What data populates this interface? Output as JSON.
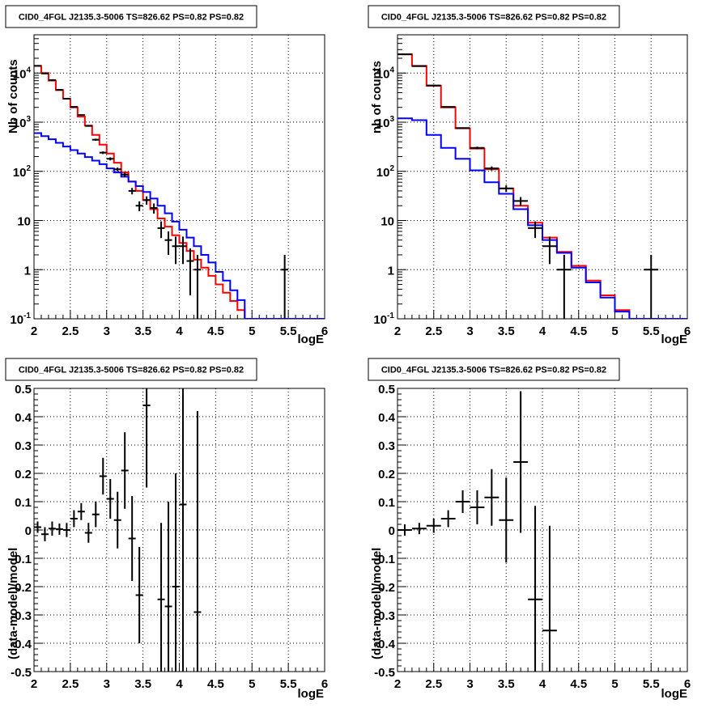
{
  "panel_title": "CID0_4FGL J2135.3-5006 TS=826.62 PS=0.82 PS=0.82",
  "colors": {
    "data": "#000000",
    "total_model": "#ff0000",
    "source_model": "#0000ff",
    "grid": "#000000"
  },
  "chart_data": [
    {
      "type": "line",
      "panel": "top-left",
      "title": "CID0_4FGL J2135.3-5006 TS=826.62 PS=0.82 PS=0.82",
      "xlabel": "logE",
      "ylabel": "Nb of counts",
      "xlim": [
        2,
        6
      ],
      "ylim": [
        0.1,
        60000
      ],
      "yscale": "log",
      "grid": true,
      "x_ticks": [
        "2",
        "2.5",
        "3",
        "3.5",
        "4",
        "4.5",
        "5",
        "5.5",
        "6"
      ],
      "y_ticks": [
        {
          "base": "10",
          "exp": "-1"
        },
        {
          "base": "1",
          "exp": ""
        },
        {
          "base": "10",
          "exp": ""
        },
        {
          "base": "10",
          "exp": "2"
        },
        {
          "base": "10",
          "exp": "3"
        },
        {
          "base": "10",
          "exp": "4"
        }
      ],
      "bin_edges": [
        2.0,
        2.1,
        2.2,
        2.3,
        2.4,
        2.5,
        2.6,
        2.7,
        2.8,
        2.9,
        3.0,
        3.1,
        3.2,
        3.3,
        3.4,
        3.5,
        3.6,
        3.7,
        3.8,
        3.9,
        4.0,
        4.1,
        4.2,
        4.3,
        4.4,
        4.5,
        4.6,
        4.7,
        4.8,
        4.9,
        5.0,
        5.1,
        5.2,
        5.3,
        5.4,
        5.5,
        5.6,
        5.7,
        5.8,
        5.9,
        6.0
      ],
      "series": [
        {
          "role": "total_model",
          "color": "#ff0000",
          "values": [
            14000,
            10000,
            7000,
            4500,
            3000,
            2000,
            1300,
            850,
            550,
            350,
            230,
            150,
            95,
            62,
            40,
            26,
            17,
            11,
            7.5,
            5,
            3.5,
            2.4,
            1.6,
            1.1,
            0.75,
            0.5,
            0.34,
            0.23,
            0.15,
            0.1,
            0.1,
            0.1,
            0.1,
            0.1,
            0.1,
            0.1,
            0.1,
            0.1,
            0.1,
            0.1
          ]
        },
        {
          "role": "source_model",
          "color": "#0000ff",
          "values": [
            600,
            520,
            450,
            380,
            320,
            270,
            230,
            195,
            165,
            140,
            115,
            95,
            78,
            62,
            50,
            38,
            28,
            20,
            14,
            9.5,
            6.5,
            4.5,
            3,
            2,
            1.4,
            0.9,
            0.6,
            0.38,
            0.24,
            0.1,
            0.1,
            0.1,
            0.1,
            0.1,
            0.1,
            0.1,
            0.1,
            0.1,
            0.1,
            0.1
          ]
        },
        {
          "role": "data",
          "color": "#000000",
          "kind": "errorbars",
          "points": [
            {
              "x": 2.05,
              "y": 14000,
              "yerr_lo": 120,
              "yerr_hi": 120
            },
            {
              "x": 2.15,
              "y": 9800,
              "yerr_lo": 100,
              "yerr_hi": 100
            },
            {
              "x": 2.25,
              "y": 7200,
              "yerr_lo": 85,
              "yerr_hi": 85
            },
            {
              "x": 2.35,
              "y": 4550,
              "yerr_lo": 67,
              "yerr_hi": 67
            },
            {
              "x": 2.45,
              "y": 3000,
              "yerr_lo": 55,
              "yerr_hi": 55
            },
            {
              "x": 2.55,
              "y": 2050,
              "yerr_lo": 45,
              "yerr_hi": 45
            },
            {
              "x": 2.65,
              "y": 1400,
              "yerr_lo": 37,
              "yerr_hi": 37
            },
            {
              "x": 2.75,
              "y": 840,
              "yerr_lo": 29,
              "yerr_hi": 29
            },
            {
              "x": 2.85,
              "y": 440,
              "yerr_lo": 21,
              "yerr_hi": 21
            },
            {
              "x": 2.95,
              "y": 240,
              "yerr_lo": 15,
              "yerr_hi": 15
            },
            {
              "x": 3.05,
              "y": 180,
              "yerr_lo": 13,
              "yerr_hi": 13
            },
            {
              "x": 3.15,
              "y": 110,
              "yerr_lo": 10,
              "yerr_hi": 10
            },
            {
              "x": 3.25,
              "y": 86,
              "yerr_lo": 9,
              "yerr_hi": 9
            },
            {
              "x": 3.35,
              "y": 40,
              "yerr_lo": 6,
              "yerr_hi": 6
            },
            {
              "x": 3.45,
              "y": 20,
              "yerr_lo": 4.5,
              "yerr_hi": 4.5
            },
            {
              "x": 3.55,
              "y": 26,
              "yerr_lo": 5,
              "yerr_hi": 5
            },
            {
              "x": 3.65,
              "y": 18,
              "yerr_lo": 4.2,
              "yerr_hi": 4.2
            },
            {
              "x": 3.75,
              "y": 7,
              "yerr_lo": 2.6,
              "yerr_hi": 2.6
            },
            {
              "x": 3.85,
              "y": 4,
              "yerr_lo": 2,
              "yerr_hi": 2
            },
            {
              "x": 3.95,
              "y": 3,
              "yerr_lo": 1.7,
              "yerr_hi": 1.7
            },
            {
              "x": 4.05,
              "y": 3,
              "yerr_lo": 1.7,
              "yerr_hi": 1.7
            },
            {
              "x": 4.15,
              "y": 1.5,
              "yerr_lo": 1.2,
              "yerr_hi": 1.2
            },
            {
              "x": 4.25,
              "y": 1,
              "yerr_lo": 1,
              "yerr_hi": 1
            },
            {
              "x": 5.45,
              "y": 1,
              "yerr_lo": 1,
              "yerr_hi": 1
            }
          ]
        }
      ]
    },
    {
      "type": "line",
      "panel": "top-right",
      "title": "CID0_4FGL J2135.3-5006 TS=826.62 PS=0.82 PS=0.82",
      "xlabel": "logE",
      "ylabel": "nb of counts",
      "xlim": [
        2,
        6
      ],
      "ylim": [
        0.1,
        60000
      ],
      "yscale": "log",
      "grid": true,
      "x_ticks": [
        "2",
        "2.5",
        "3",
        "3.5",
        "4",
        "4.5",
        "5",
        "5.5",
        "6"
      ],
      "y_ticks": [
        {
          "base": "10",
          "exp": "-1"
        },
        {
          "base": "1",
          "exp": ""
        },
        {
          "base": "10",
          "exp": ""
        },
        {
          "base": "10",
          "exp": "2"
        },
        {
          "base": "10",
          "exp": "3"
        },
        {
          "base": "10",
          "exp": "4"
        }
      ],
      "bin_edges": [
        2.0,
        2.2,
        2.4,
        2.6,
        2.8,
        3.0,
        3.2,
        3.4,
        3.6,
        3.8,
        4.0,
        4.2,
        4.4,
        4.6,
        4.8,
        5.0,
        5.2,
        5.4,
        5.6,
        5.8,
        6.0
      ],
      "series": [
        {
          "role": "total_model",
          "color": "#ff0000",
          "values": [
            24000,
            14000,
            5500,
            2000,
            750,
            290,
            110,
            45,
            20,
            9,
            4.5,
            2.3,
            1.2,
            0.6,
            0.3,
            0.15,
            0.1,
            0.1,
            0.1,
            0.1
          ]
        },
        {
          "role": "source_model",
          "color": "#0000ff",
          "values": [
            1200,
            1100,
            550,
            300,
            180,
            105,
            60,
            35,
            17,
            8,
            4,
            2.2,
            1.1,
            0.55,
            0.27,
            0.14,
            0.1,
            0.1,
            0.1,
            0.1
          ]
        },
        {
          "role": "data",
          "color": "#000000",
          "kind": "errorbars",
          "points": [
            {
              "x": 2.1,
              "y": 24000,
              "yerr_lo": 155,
              "yerr_hi": 155
            },
            {
              "x": 2.3,
              "y": 13800,
              "yerr_lo": 118,
              "yerr_hi": 118
            },
            {
              "x": 2.5,
              "y": 5600,
              "yerr_lo": 75,
              "yerr_hi": 75
            },
            {
              "x": 2.7,
              "y": 2050,
              "yerr_lo": 45,
              "yerr_hi": 45
            },
            {
              "x": 2.9,
              "y": 760,
              "yerr_lo": 28,
              "yerr_hi": 28
            },
            {
              "x": 3.1,
              "y": 300,
              "yerr_lo": 17,
              "yerr_hi": 17
            },
            {
              "x": 3.3,
              "y": 115,
              "yerr_lo": 11,
              "yerr_hi": 11
            },
            {
              "x": 3.5,
              "y": 45,
              "yerr_lo": 7,
              "yerr_hi": 7
            },
            {
              "x": 3.7,
              "y": 25,
              "yerr_lo": 5,
              "yerr_hi": 5
            },
            {
              "x": 3.9,
              "y": 7,
              "yerr_lo": 2.6,
              "yerr_hi": 2.6
            },
            {
              "x": 4.1,
              "y": 3,
              "yerr_lo": 1.7,
              "yerr_hi": 1.7
            },
            {
              "x": 4.3,
              "y": 1,
              "yerr_lo": 1,
              "yerr_hi": 1
            },
            {
              "x": 5.5,
              "y": 1,
              "yerr_lo": 1,
              "yerr_hi": 1
            }
          ]
        }
      ]
    },
    {
      "type": "scatter",
      "panel": "bottom-left",
      "title": "CID0_4FGL J2135.3-5006 TS=826.62 PS=0.82 PS=0.82",
      "xlabel": "logE",
      "ylabel": "(data-model)/model",
      "xlim": [
        2,
        6
      ],
      "ylim": [
        -0.5,
        0.5
      ],
      "grid": true,
      "x_ticks": [
        "2",
        "2.5",
        "3",
        "3.5",
        "4",
        "4.5",
        "5",
        "5.5",
        "6"
      ],
      "y_ticks": [
        "-0.5",
        "-0.4",
        "-0.3",
        "-0.2",
        "-0.1",
        "0",
        "0.1",
        "0.2",
        "0.3",
        "0.4",
        "0.5"
      ],
      "bin_width": 0.1,
      "points": [
        {
          "x": 2.05,
          "y": 0.01,
          "yerr": 0.02
        },
        {
          "x": 2.15,
          "y": -0.015,
          "yerr": 0.025
        },
        {
          "x": 2.25,
          "y": 0.005,
          "yerr": 0.025
        },
        {
          "x": 2.35,
          "y": 0.003,
          "yerr": 0.02
        },
        {
          "x": 2.45,
          "y": 0.0,
          "yerr": 0.025
        },
        {
          "x": 2.55,
          "y": 0.04,
          "yerr": 0.03
        },
        {
          "x": 2.65,
          "y": 0.065,
          "yerr": 0.03
        },
        {
          "x": 2.75,
          "y": -0.01,
          "yerr": 0.035
        },
        {
          "x": 2.85,
          "y": 0.055,
          "yerr": 0.045
        },
        {
          "x": 2.95,
          "y": 0.19,
          "yerr": 0.065
        },
        {
          "x": 3.05,
          "y": 0.11,
          "yerr": 0.07
        },
        {
          "x": 3.15,
          "y": 0.035,
          "yerr": 0.1
        },
        {
          "x": 3.25,
          "y": 0.21,
          "yerr": 0.135
        },
        {
          "x": 3.35,
          "y": -0.03,
          "yerr": 0.15
        },
        {
          "x": 3.45,
          "y": -0.23,
          "yerr": 0.17
        },
        {
          "x": 3.55,
          "y": 0.44,
          "yerr": 0.29
        },
        {
          "x": 3.75,
          "y": -0.245,
          "yerr": 0.27
        },
        {
          "x": 3.85,
          "y": -0.27,
          "yerr": 0.37
        },
        {
          "x": 3.95,
          "y": -0.2,
          "yerr": 0.4
        },
        {
          "x": 4.05,
          "y": 0.09,
          "yerr": 0.6
        },
        {
          "x": 4.25,
          "y": -0.29,
          "yerr": 0.71
        }
      ]
    },
    {
      "type": "scatter",
      "panel": "bottom-right",
      "title": "CID0_4FGL J2135.3-5006 TS=826.62 PS=0.82 PS=0.82",
      "xlabel": "logE",
      "ylabel": "(data-model)/model",
      "xlim": [
        2,
        6
      ],
      "ylim": [
        -0.5,
        0.5
      ],
      "grid": true,
      "x_ticks": [
        "2",
        "2.5",
        "3",
        "3.5",
        "4",
        "4.5",
        "5",
        "5.5",
        "6"
      ],
      "y_ticks": [
        "-0.5",
        "-0.4",
        "-0.3",
        "-0.2",
        "-0.1",
        "0",
        "0.1",
        "0.2",
        "0.3",
        "0.4",
        "0.5"
      ],
      "bin_width": 0.2,
      "points": [
        {
          "x": 2.1,
          "y": 0.0,
          "yerr": 0.02
        },
        {
          "x": 2.3,
          "y": 0.005,
          "yerr": 0.02
        },
        {
          "x": 2.5,
          "y": 0.015,
          "yerr": 0.025
        },
        {
          "x": 2.7,
          "y": 0.04,
          "yerr": 0.03
        },
        {
          "x": 2.9,
          "y": 0.1,
          "yerr": 0.04
        },
        {
          "x": 3.1,
          "y": 0.08,
          "yerr": 0.06
        },
        {
          "x": 3.3,
          "y": 0.115,
          "yerr": 0.1
        },
        {
          "x": 3.5,
          "y": 0.035,
          "yerr": 0.15
        },
        {
          "x": 3.7,
          "y": 0.24,
          "yerr": 0.25
        },
        {
          "x": 3.9,
          "y": -0.245,
          "yerr": 0.33
        },
        {
          "x": 4.1,
          "y": -0.355,
          "yerr": 0.37
        }
      ]
    }
  ]
}
